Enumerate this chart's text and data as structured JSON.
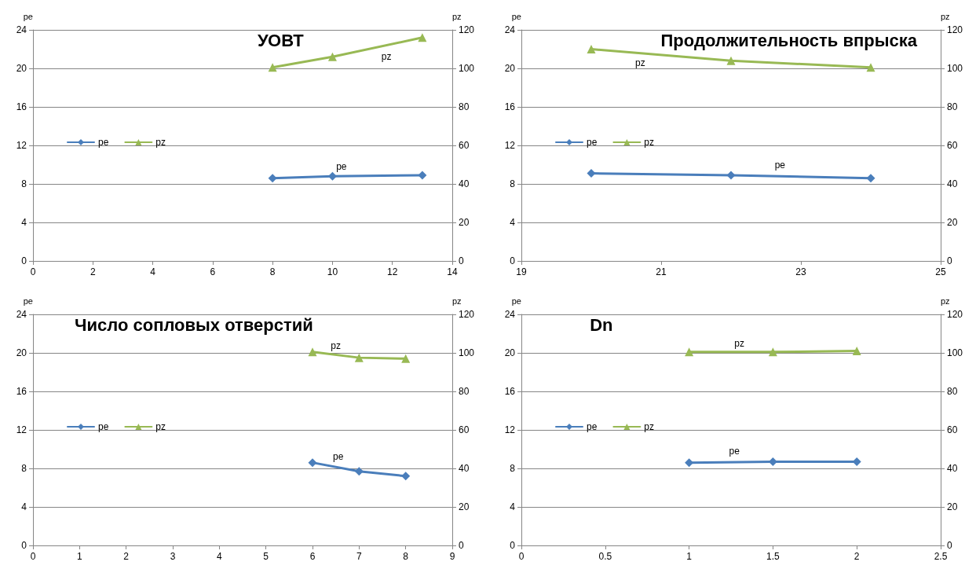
{
  "chart_data": [
    {
      "type": "line",
      "title": "УОВТ",
      "ylabel": "pe",
      "y2label": "pz",
      "x": [
        8,
        10,
        13
      ],
      "xlim": [
        0,
        14
      ],
      "xticks": [
        0,
        2,
        4,
        6,
        8,
        10,
        12,
        14
      ],
      "ylim": [
        0,
        24
      ],
      "yticks": [
        0,
        4,
        8,
        12,
        16,
        20,
        24
      ],
      "y2lim": [
        0,
        120
      ],
      "y2ticks": [
        0,
        20,
        40,
        60,
        80,
        100,
        120
      ],
      "grid": "y",
      "legend": "left",
      "line_style": "solid",
      "series": [
        {
          "name": "pe",
          "color": "#4a7ebb",
          "marker": "diamond",
          "values": [
            8.6,
            8.8,
            8.9
          ]
        },
        {
          "name": "pz",
          "color": "#98b954",
          "marker": "triangle",
          "axis": "y2",
          "values": [
            100.5,
            106,
            116
          ]
        }
      ],
      "annotations": [
        "pe",
        "pz"
      ]
    },
    {
      "type": "line",
      "title": "Продолжительность впрыска",
      "ylabel": "pe",
      "y2label": "pz",
      "x": [
        20,
        22,
        24
      ],
      "xlim": [
        19,
        25
      ],
      "xticks": [
        19,
        21,
        23,
        25
      ],
      "ylim": [
        0,
        24
      ],
      "yticks": [
        0,
        4,
        8,
        12,
        16,
        20,
        24
      ],
      "y2lim": [
        0,
        120
      ],
      "y2ticks": [
        0,
        20,
        40,
        60,
        80,
        100,
        120
      ],
      "grid": "y",
      "legend": "left",
      "line_style": "solid",
      "series": [
        {
          "name": "pe",
          "color": "#4a7ebb",
          "marker": "diamond",
          "values": [
            9.1,
            8.9,
            8.6
          ]
        },
        {
          "name": "pz",
          "color": "#98b954",
          "marker": "triangle",
          "axis": "y2",
          "values": [
            110,
            104,
            100.5
          ]
        }
      ],
      "annotations": [
        "pe",
        "pz"
      ]
    },
    {
      "type": "line",
      "title": "Число сопловых отверстий",
      "ylabel": "pe",
      "y2label": "pz",
      "x": [
        6,
        7,
        8
      ],
      "xlim": [
        0,
        9
      ],
      "xticks": [
        0,
        1,
        2,
        3,
        4,
        5,
        6,
        7,
        8,
        9
      ],
      "ylim": [
        0,
        24
      ],
      "yticks": [
        0,
        4,
        8,
        12,
        16,
        20,
        24
      ],
      "y2lim": [
        0,
        120
      ],
      "y2ticks": [
        0,
        20,
        40,
        60,
        80,
        100,
        120
      ],
      "grid": "y",
      "legend": "left",
      "line_style": "solid",
      "series": [
        {
          "name": "pe",
          "color": "#4a7ebb",
          "marker": "diamond",
          "values": [
            8.6,
            7.7,
            7.2
          ]
        },
        {
          "name": "pz",
          "color": "#98b954",
          "marker": "triangle",
          "axis": "y2",
          "values": [
            100.5,
            97.5,
            97
          ]
        }
      ],
      "annotations": [
        "pe",
        "pz"
      ]
    },
    {
      "type": "line",
      "title": "Dn",
      "ylabel": "pe",
      "y2label": "pz",
      "x": [
        1,
        1.5,
        2
      ],
      "xlim": [
        0,
        2.5
      ],
      "xticks": [
        0,
        0.5,
        1,
        1.5,
        2,
        2.5
      ],
      "ylim": [
        0,
        24
      ],
      "yticks": [
        0,
        4,
        8,
        12,
        16,
        20,
        24
      ],
      "y2lim": [
        0,
        120
      ],
      "y2ticks": [
        0,
        20,
        40,
        60,
        80,
        100,
        120
      ],
      "grid": "y",
      "legend": "left",
      "line_style": "solid",
      "series": [
        {
          "name": "pe",
          "color": "#4a7ebb",
          "marker": "diamond",
          "values": [
            8.6,
            8.7,
            8.7
          ]
        },
        {
          "name": "pz",
          "color": "#98b954",
          "marker": "triangle",
          "axis": "y2",
          "values": [
            100.5,
            100.5,
            101
          ]
        }
      ],
      "annotations": [
        "pe",
        "pz"
      ]
    }
  ]
}
